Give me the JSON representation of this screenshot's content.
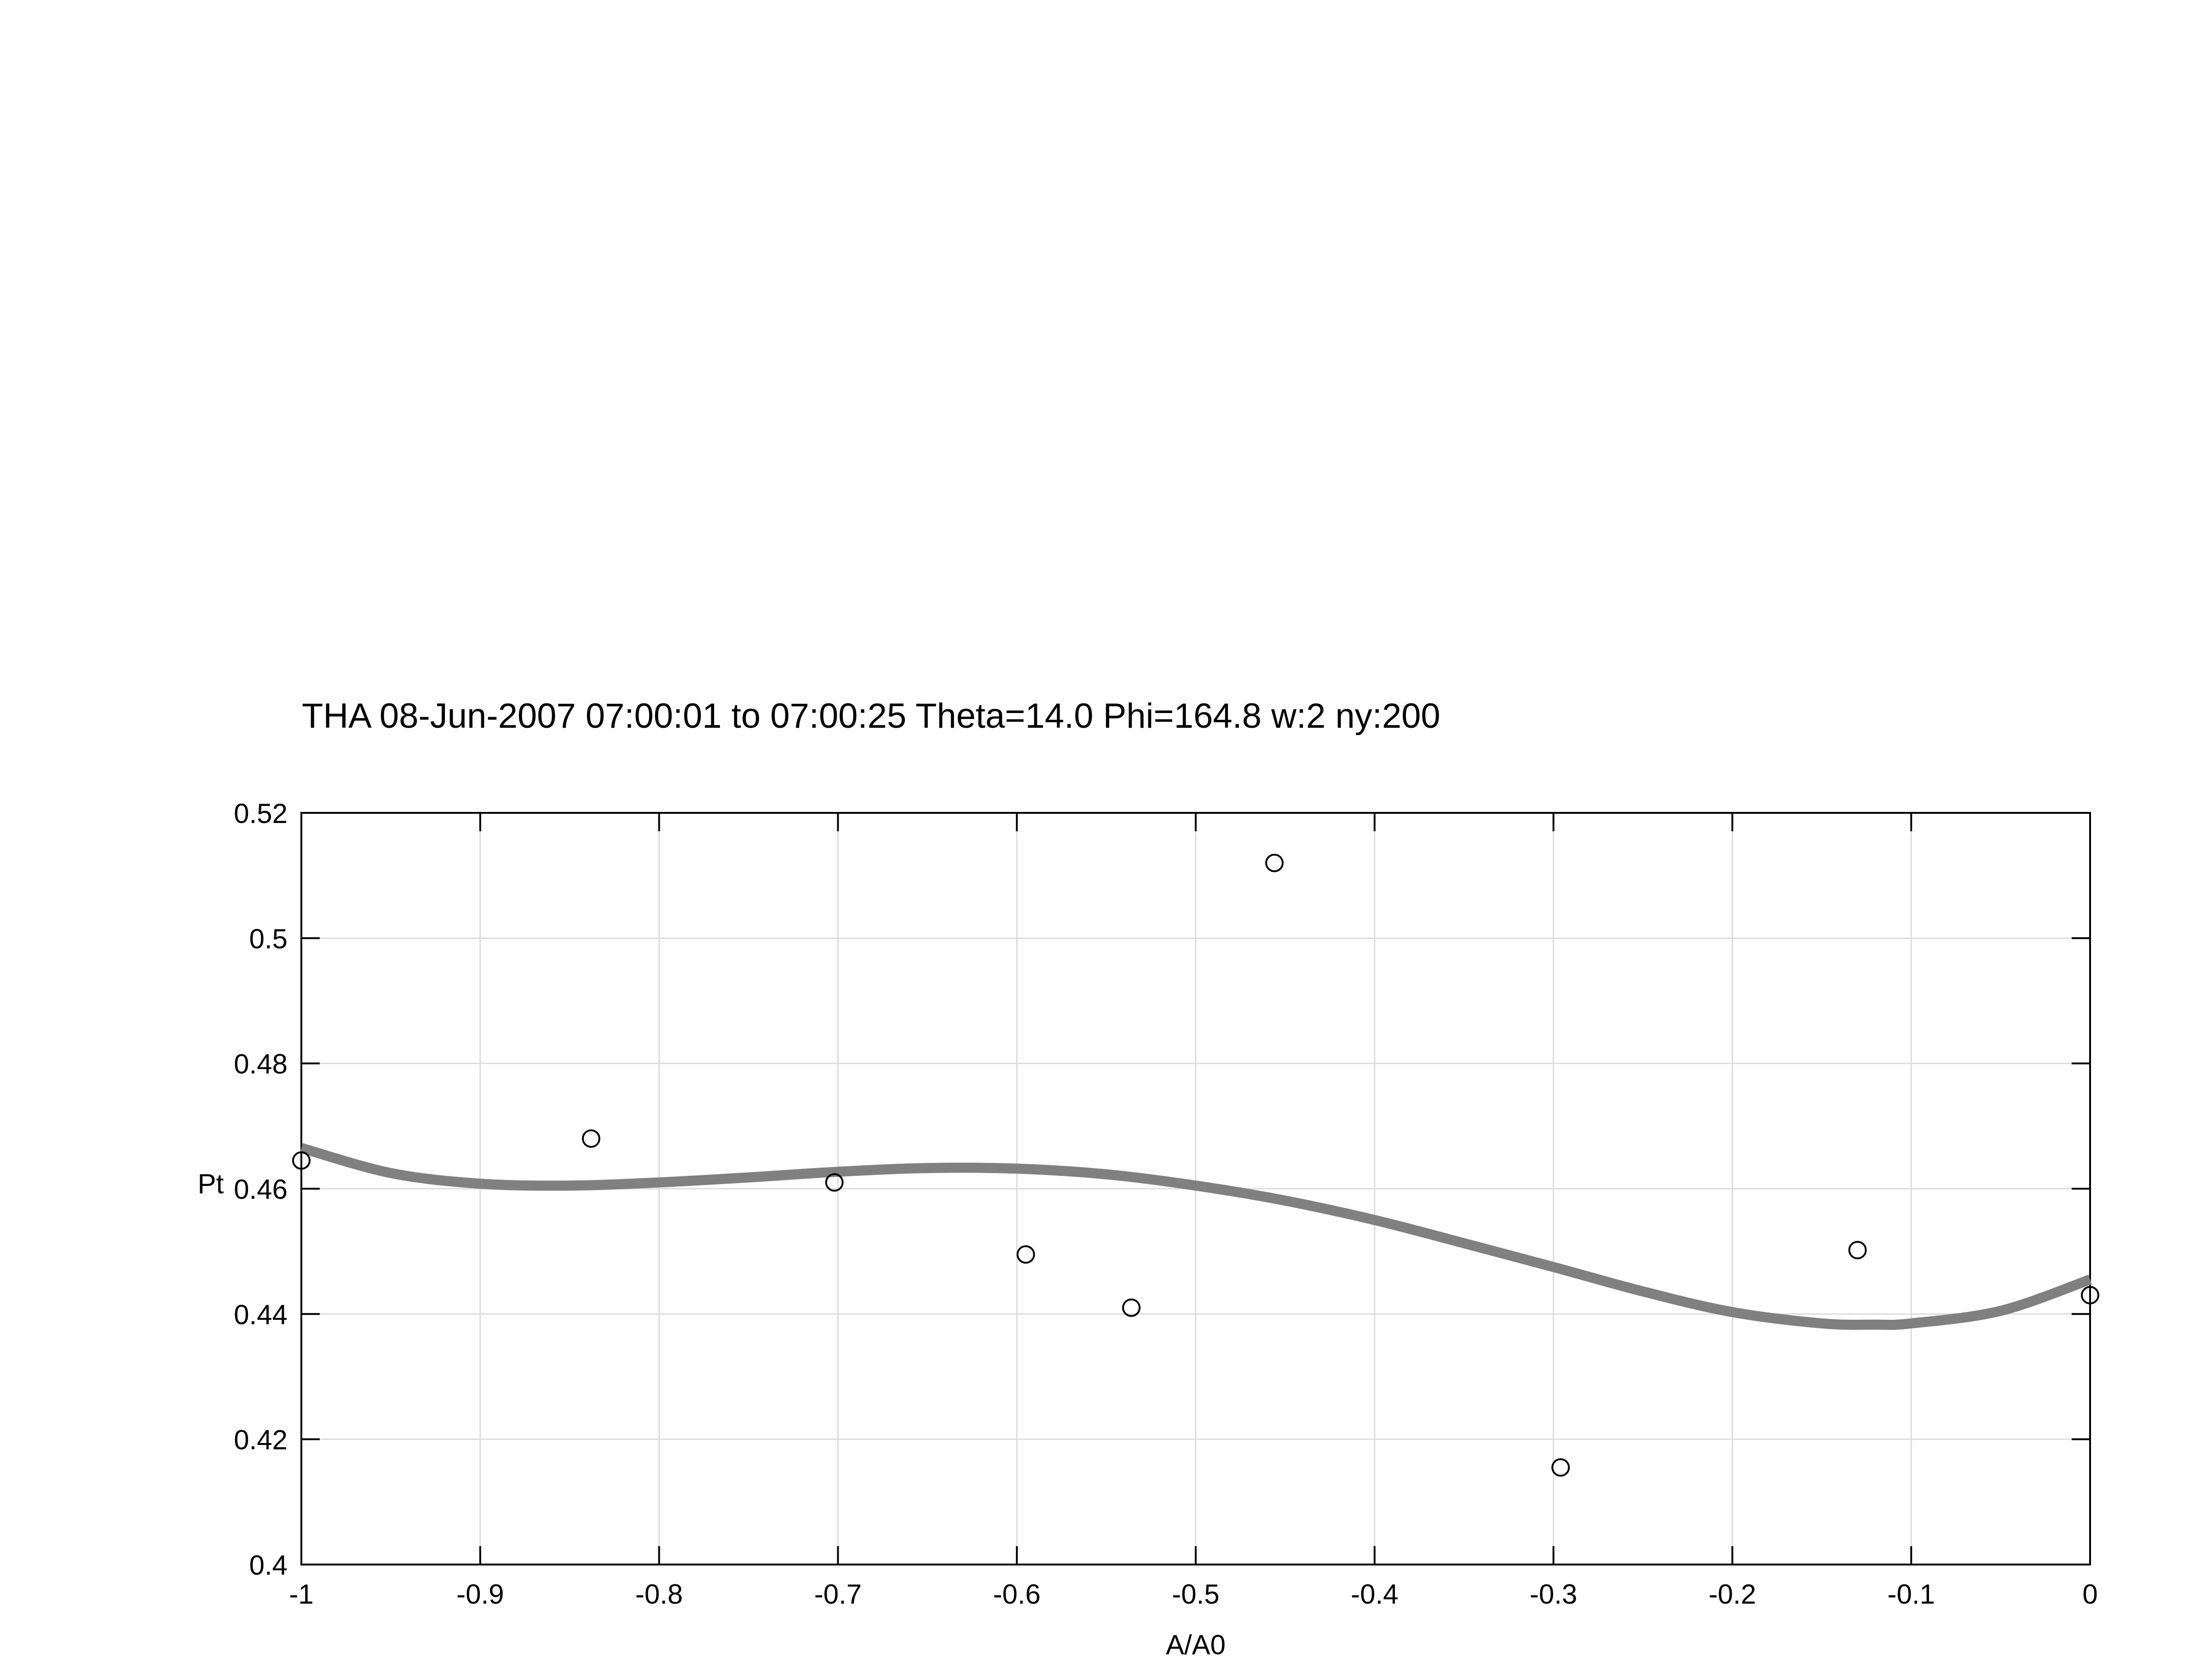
{
  "chart_data": {
    "type": "scatter",
    "title": "THA 08-Jun-2007 07:00:01 to 07:00:25 Theta=14.0 Phi=164.8 w:2 ny:200",
    "xlabel": "A/A0",
    "ylabel": "Pt",
    "xlim": [
      -1,
      0
    ],
    "ylim": [
      0.4,
      0.52
    ],
    "x_ticks": [
      -1,
      -0.9,
      -0.8,
      -0.7,
      -0.6,
      -0.5,
      -0.4,
      -0.3,
      -0.2,
      -0.1,
      0
    ],
    "x_tick_labels": [
      "-1",
      "-0.9",
      "-0.8",
      "-0.7",
      "-0.6",
      "-0.5",
      "-0.4",
      "-0.3",
      "-0.2",
      "-0.1",
      "0"
    ],
    "y_ticks": [
      0.4,
      0.42,
      0.44,
      0.46,
      0.48,
      0.5,
      0.52
    ],
    "y_tick_labels": [
      "0.4",
      "0.42",
      "0.44",
      "0.46",
      "0.48",
      "0.5",
      "0.52"
    ],
    "grid": true,
    "series": [
      {
        "type": "scatter",
        "marker": "open-circle",
        "color": "#000000",
        "x": [
          -1.0,
          -0.838,
          -0.702,
          -0.595,
          -0.536,
          -0.456,
          -0.296,
          -0.13,
          0.0
        ],
        "y": [
          0.4645,
          0.468,
          0.461,
          0.4495,
          0.441,
          0.512,
          0.4155,
          0.4502,
          0.443
        ]
      },
      {
        "type": "line",
        "color": "#808080",
        "x": [
          -1.0,
          -0.95,
          -0.9,
          -0.85,
          -0.8,
          -0.75,
          -0.7,
          -0.65,
          -0.6,
          -0.55,
          -0.5,
          -0.45,
          -0.4,
          -0.35,
          -0.3,
          -0.25,
          -0.2,
          -0.15,
          -0.12,
          -0.1,
          -0.05,
          0.0
        ],
        "y": [
          0.4665,
          0.4625,
          0.4608,
          0.4605,
          0.461,
          0.4618,
          0.4627,
          0.4633,
          0.4632,
          0.4623,
          0.4605,
          0.4581,
          0.455,
          0.4513,
          0.4475,
          0.4436,
          0.4403,
          0.4385,
          0.4383,
          0.4385,
          0.4405,
          0.4455
        ]
      }
    ]
  }
}
